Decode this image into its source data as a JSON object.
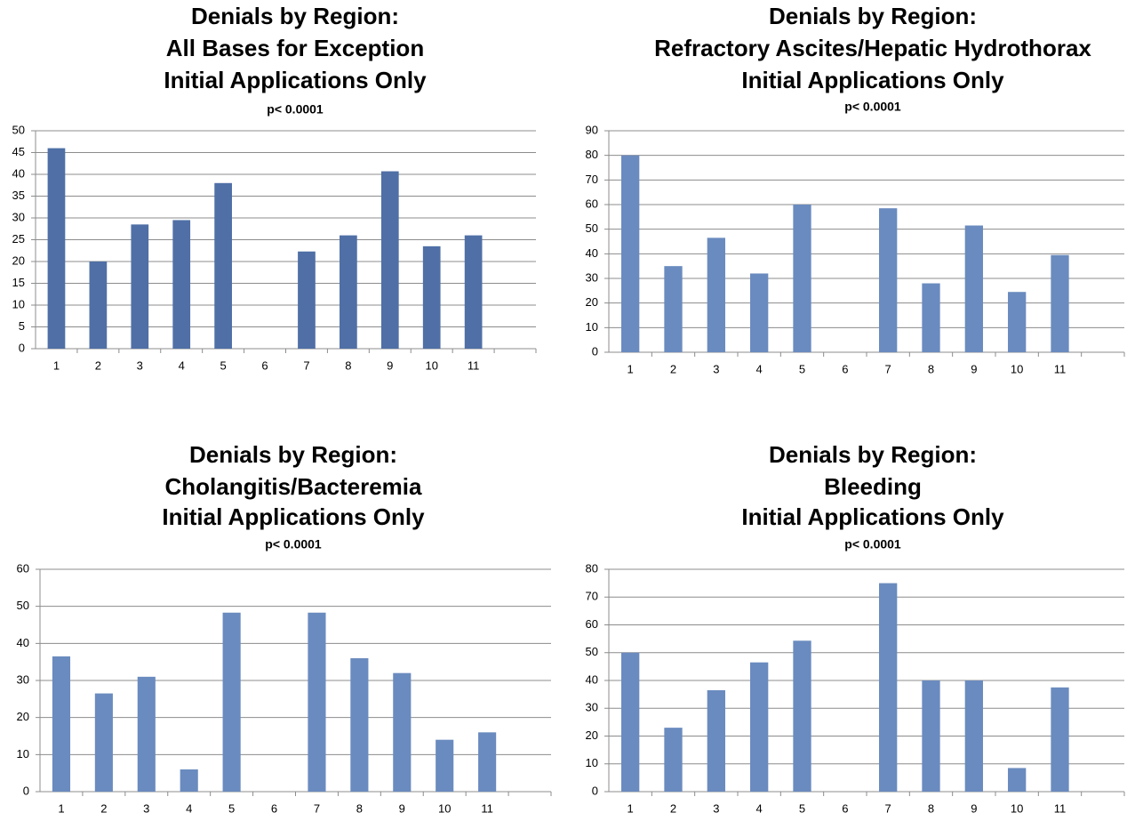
{
  "chart_data": [
    {
      "type": "bar",
      "title": [
        "Denials by Region:",
        "All Bases for Exception",
        "Initial Applications Only"
      ],
      "subtitle": "p< 0.0001",
      "categories": [
        "1",
        "2",
        "3",
        "4",
        "5",
        "6",
        "7",
        "8",
        "9",
        "10",
        "11",
        null
      ],
      "values": [
        46,
        20,
        28.5,
        29.5,
        38,
        0,
        22.3,
        26,
        40.7,
        23.5,
        26,
        null
      ],
      "color": "#4f6fa6",
      "ylim": [
        0,
        50
      ],
      "yticks": [
        0,
        5,
        10,
        15,
        20,
        25,
        30,
        35,
        40,
        45,
        50
      ],
      "grid": true
    },
    {
      "type": "bar",
      "title": [
        "Denials by Region:",
        "Refractory Ascites/Hepatic Hydrothorax",
        "Initial Applications Only"
      ],
      "subtitle": "p< 0.0001",
      "categories": [
        "1",
        "2",
        "3",
        "4",
        "5",
        "6",
        "7",
        "8",
        "9",
        "10",
        "11",
        null
      ],
      "values": [
        80,
        35,
        46.5,
        32,
        60,
        0,
        58.5,
        28,
        51.5,
        24.5,
        39.5,
        null
      ],
      "color": "#6a8bbf",
      "ylim": [
        0,
        90
      ],
      "yticks": [
        0,
        10,
        20,
        30,
        40,
        50,
        60,
        70,
        80,
        90
      ],
      "grid": true
    },
    {
      "type": "bar",
      "title": [
        "Denials by Region:",
        "Cholangitis/Bacteremia",
        "Initial Applications Only"
      ],
      "subtitle": "p< 0.0001",
      "categories": [
        "1",
        "2",
        "3",
        "4",
        "5",
        "6",
        "7",
        "8",
        "9",
        "10",
        "11",
        null
      ],
      "values": [
        36.5,
        26.5,
        31,
        6,
        48.3,
        0,
        48.3,
        36,
        32,
        14,
        16,
        null
      ],
      "color": "#6a8bbf",
      "ylim": [
        0,
        60
      ],
      "yticks": [
        0,
        10,
        20,
        30,
        40,
        50,
        60
      ],
      "grid": true
    },
    {
      "type": "bar",
      "title": [
        "Denials by Region:",
        "Bleeding",
        "Initial Applications Only"
      ],
      "subtitle": "p< 0.0001",
      "categories": [
        "1",
        "2",
        "3",
        "4",
        "5",
        "6",
        "7",
        "8",
        "9",
        "10",
        "11",
        null
      ],
      "values": [
        50,
        23,
        36.5,
        46.5,
        54.3,
        0,
        75,
        40,
        40,
        8.5,
        37.5,
        null
      ],
      "color": "#6a8bbf",
      "ylim": [
        0,
        80
      ],
      "yticks": [
        0,
        10,
        20,
        30,
        40,
        50,
        60,
        70,
        80
      ],
      "grid": true
    }
  ]
}
